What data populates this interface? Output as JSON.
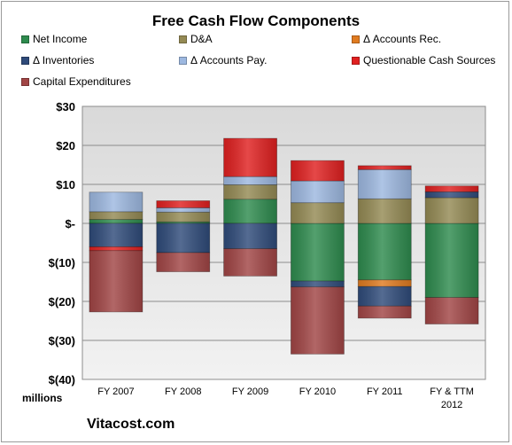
{
  "chart_data": {
    "type": "bar",
    "stacked": true,
    "title": "Free Cash Flow Components",
    "ylabel": "millions",
    "xlabel": "",
    "categories": [
      "FY 2007",
      "FY 2008",
      "FY 2009",
      "FY 2010",
      "FY 2011",
      "FY & TTM 2012"
    ],
    "ylim": [
      -40,
      30
    ],
    "yticks": [
      30,
      20,
      10,
      0,
      -10,
      -20,
      -30,
      -40
    ],
    "ytick_labels": [
      "$30",
      "$20",
      "$10",
      "$-",
      "$(10)",
      "$(20)",
      "$(30)",
      "$(40)"
    ],
    "grid": true,
    "legend_position": "top",
    "series": [
      {
        "name": "Net Income",
        "color": "#2e8b4e",
        "values": [
          1.0,
          0.4,
          6.2,
          -14.8,
          -14.5,
          -19.0
        ]
      },
      {
        "name": "D&A",
        "color": "#948a54",
        "values": [
          2.0,
          2.5,
          3.7,
          5.3,
          6.3,
          6.6
        ]
      },
      {
        "name": "Δ Accounts Rec.",
        "color": "#e07b20",
        "values": [
          0.0,
          0.0,
          0.0,
          0.0,
          -1.7,
          0.0
        ]
      },
      {
        "name": "Δ Inventories",
        "color": "#2f4b7a",
        "values": [
          -6.0,
          -7.5,
          -6.5,
          -1.5,
          -5.0,
          1.5
        ]
      },
      {
        "name": "Δ Accounts Pay.",
        "color": "#9db8e0",
        "values": [
          5.0,
          1.1,
          2.1,
          5.6,
          7.5,
          0.0
        ]
      },
      {
        "name": "Questionable Cash Sources",
        "color": "#e02020",
        "values": [
          -1.0,
          1.8,
          9.8,
          5.2,
          1.0,
          1.5
        ]
      },
      {
        "name": "Capital Expenditures",
        "color": "#a14545",
        "values": [
          -15.7,
          -4.9,
          -7.0,
          -17.2,
          -3.1,
          -6.8
        ]
      }
    ]
  },
  "footer_text": "Vitacost.com"
}
